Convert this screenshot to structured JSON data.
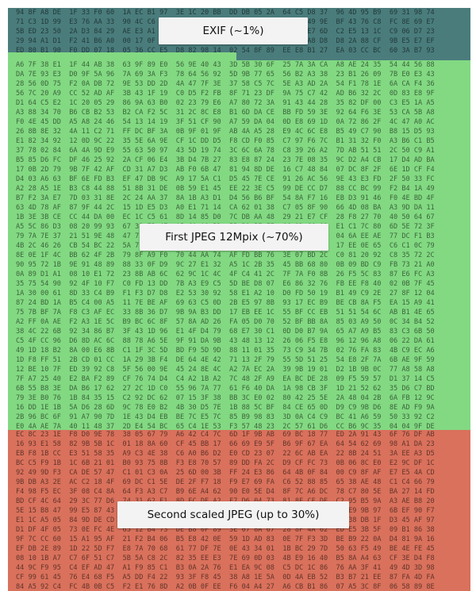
{
  "diagram": {
    "regions": [
      {
        "id": "exif",
        "label": "EXIF (~1%)",
        "color": "#4a7c7c"
      },
      {
        "id": "first-jpeg",
        "label": "First JPEG 12Mpix  (~70%)",
        "color": "#82d982"
      },
      {
        "id": "second-jpeg",
        "label": "Second scaled JPEG (up to 30%)",
        "color": "#d9715c"
      }
    ]
  }
}
